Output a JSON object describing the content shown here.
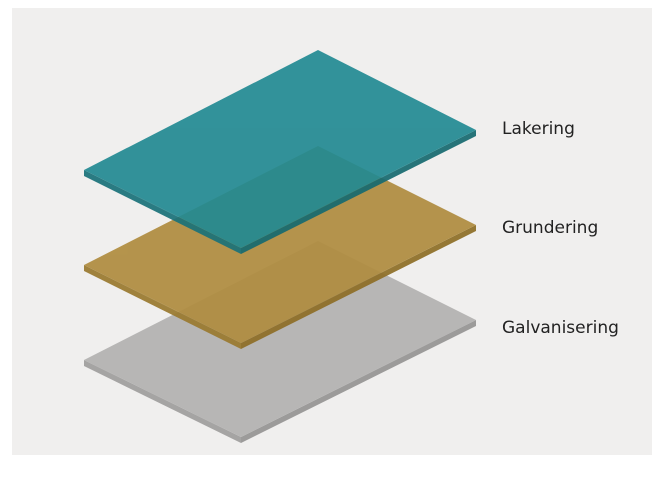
{
  "layers": [
    {
      "label": "Lakering"
    },
    {
      "label": "Grundering"
    },
    {
      "label": "Galvanisering"
    }
  ]
}
